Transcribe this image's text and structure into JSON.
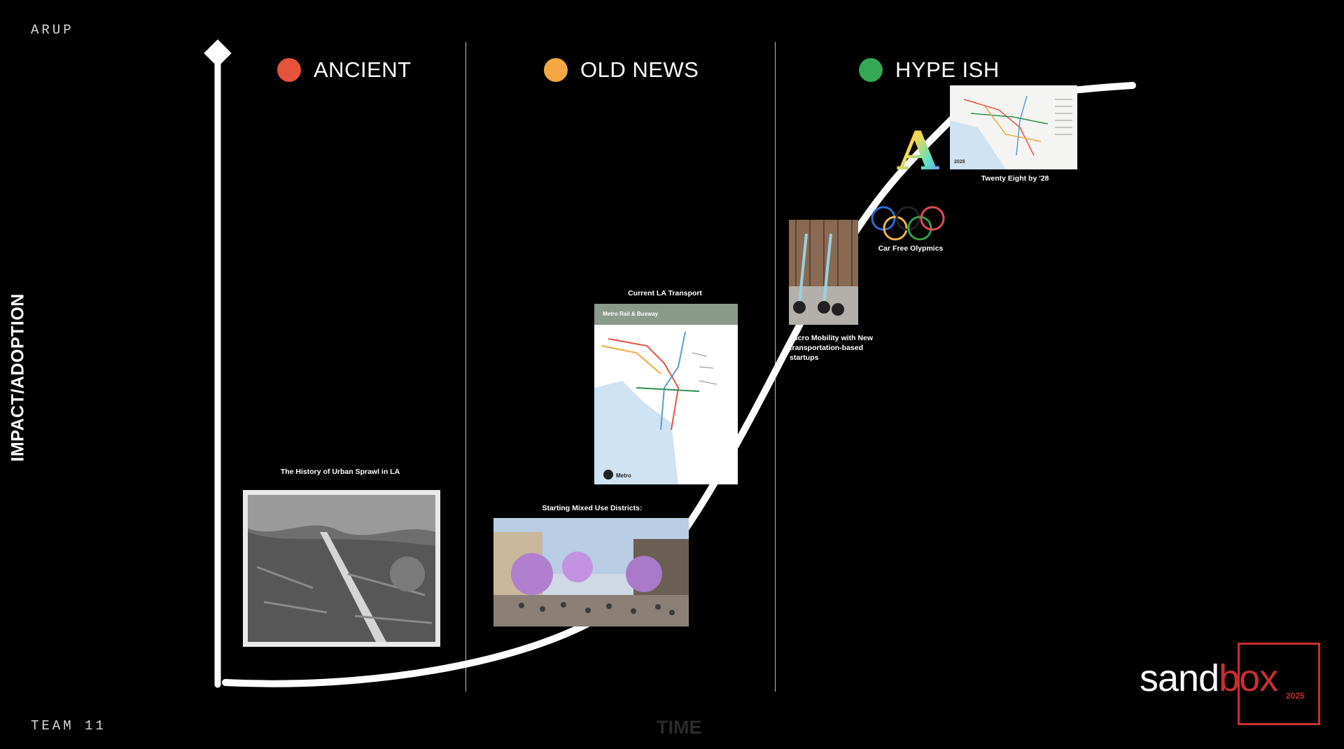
{
  "header": {
    "brand": "ARUP",
    "team": "TEAM 11"
  },
  "axes": {
    "y_label": "IMPACT/ADOPTION",
    "x_label": "TIME"
  },
  "eras": [
    {
      "label": "ANCIENT",
      "color": "#e5533a"
    },
    {
      "label": "OLD NEWS",
      "color": "#f4a742"
    },
    {
      "label": "HYPE ISH",
      "color": "#34a853"
    }
  ],
  "milestones": [
    {
      "caption": "The History of Urban Sprawl in LA"
    },
    {
      "caption": "Starting Mixed Use Districts:"
    },
    {
      "caption": "Current LA Transport"
    },
    {
      "caption": "Micro Mobility with New transportation-based startups"
    },
    {
      "caption": "Car Free Olypmics"
    },
    {
      "caption": "Twenty Eight by '28"
    }
  ],
  "map_card": {
    "title": "Metro Rail & Busway",
    "logo_text": "Metro"
  },
  "map2028": {
    "badge": "2028"
  },
  "logo": {
    "word_a": "sand",
    "word_b": "box",
    "year": "2025",
    "accent": "#c8302d"
  }
}
